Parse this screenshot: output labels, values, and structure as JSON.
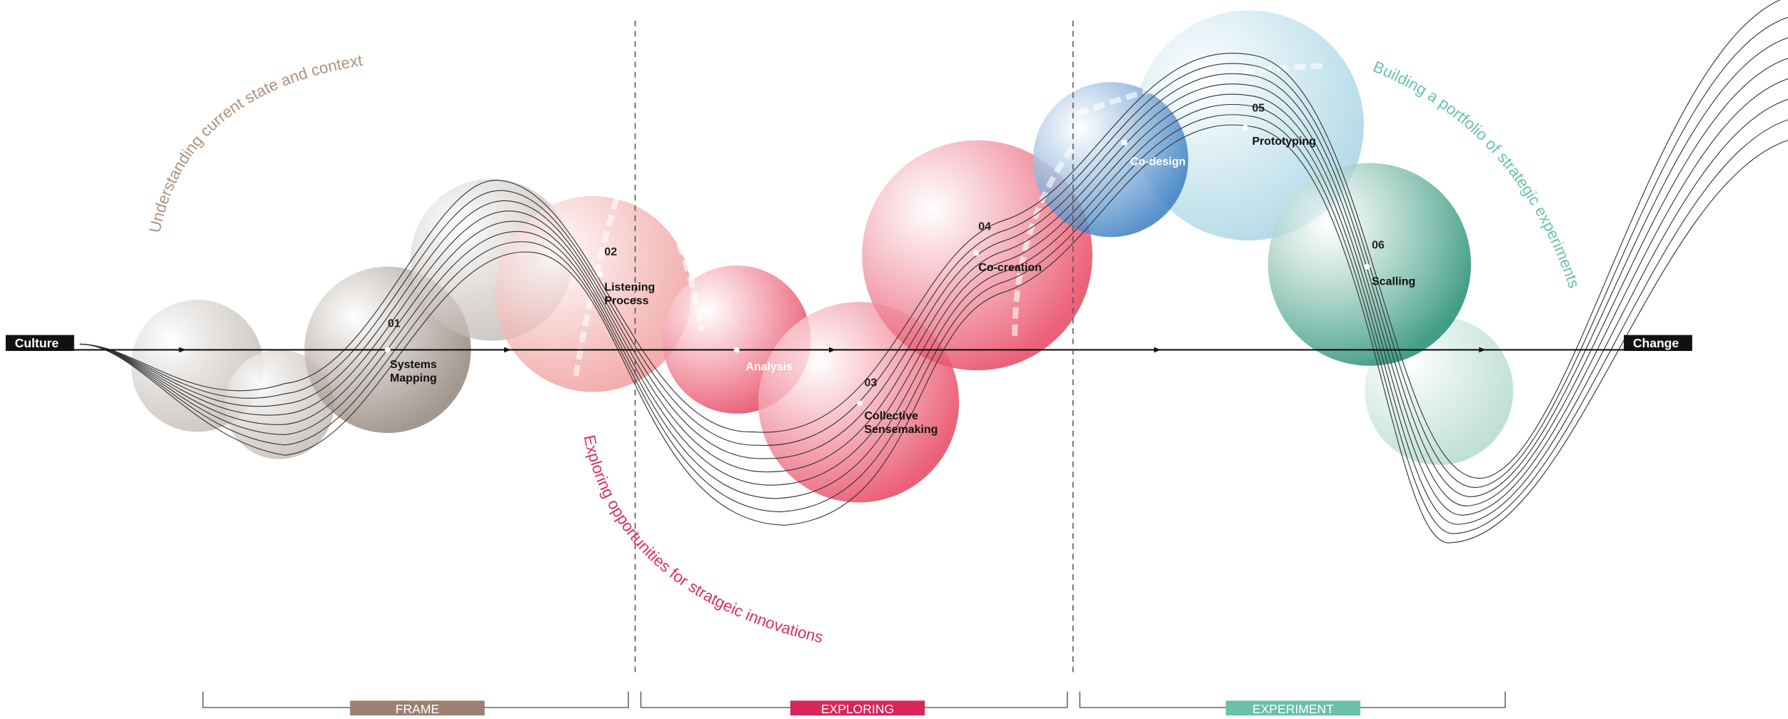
{
  "start": "Culture",
  "end": "Change",
  "arc_labels": [
    "Understanding current state and context",
    "Exploring opportunities for stratgeic innovations",
    "Building a portfolio of strategic experiments"
  ],
  "steps": [
    {
      "number": "01",
      "label": [
        "Systems",
        "Mapping"
      ]
    },
    {
      "number": "02",
      "label": [
        "Listening",
        "Process"
      ]
    },
    {
      "number": "03",
      "label": [
        "Collective",
        "Sensemaking"
      ]
    },
    {
      "number": "04",
      "label": [
        "Co-creation"
      ]
    },
    {
      "number": "05",
      "label": [
        "Prototyping"
      ]
    },
    {
      "number": "06",
      "label": [
        "Scalling"
      ]
    }
  ],
  "sub_steps": [
    "Analysis",
    "Co-design"
  ],
  "phases": [
    "FRAME",
    "EXPLORING",
    "EXPERIMENT"
  ]
}
